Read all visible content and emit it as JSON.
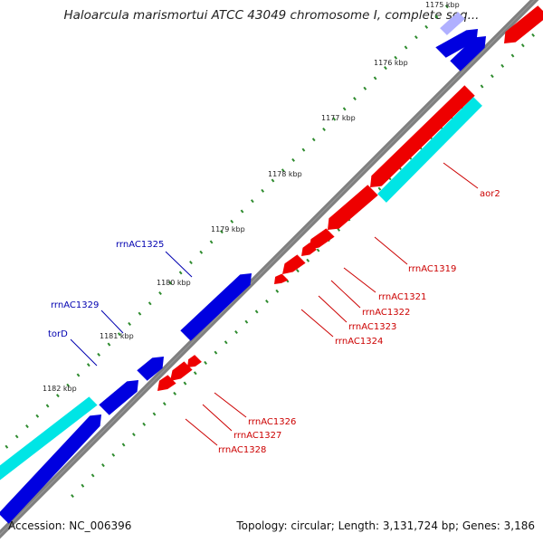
{
  "title": "Haloarcula marismortui ATCC 43049 chromosome I, complete seq...",
  "footer": {
    "accession_text": "Accession: NC_006396",
    "summary_text": "Topology: circular; Length: 3,131,724 bp; Genes: 3,186"
  },
  "colors": {
    "forward_gene": "#0000e0",
    "reverse_gene": "#ee0000",
    "cyan_feature": "#00e5e5",
    "backbone": "#808080",
    "tick_dots": "#2e8b2e",
    "forward_label": "#0000b0",
    "reverse_label": "#cc0000"
  },
  "ticks": [
    {
      "label": "1175 kbp"
    },
    {
      "label": "1176 kbp"
    },
    {
      "label": "1177 kbp"
    },
    {
      "label": "1178 kbp"
    },
    {
      "label": "1179 kbp"
    },
    {
      "label": "1180 kbp"
    },
    {
      "label": "1181 kbp"
    },
    {
      "label": "1182 kbp"
    }
  ],
  "forward_labels": [
    {
      "name": "rrnAC1325"
    },
    {
      "name": "rrnAC1329"
    },
    {
      "name": "torD"
    }
  ],
  "reverse_labels": [
    {
      "name": "aor2"
    },
    {
      "name": "rrnAC1319"
    },
    {
      "name": "rrnAC1321"
    },
    {
      "name": "rrnAC1322"
    },
    {
      "name": "rrnAC1323"
    },
    {
      "name": "rrnAC1324"
    },
    {
      "name": "rrnAC1326"
    },
    {
      "name": "rrnAC1327"
    },
    {
      "name": "rrnAC1328"
    }
  ]
}
